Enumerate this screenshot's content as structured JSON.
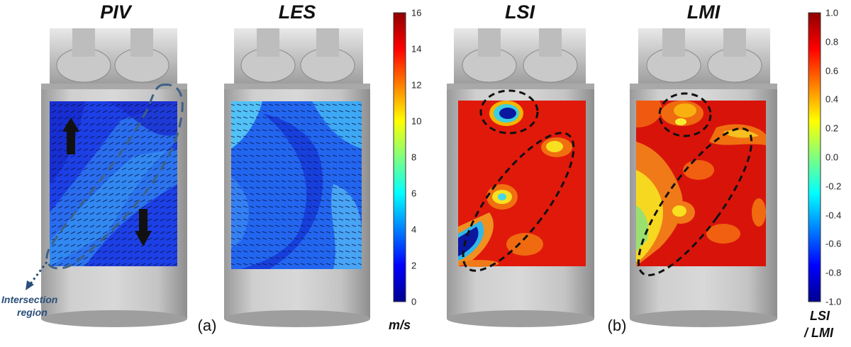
{
  "panel_titles": {
    "piv": "PIV",
    "les": "LES",
    "lsi": "LSI",
    "lmi": "LMI"
  },
  "subfigure_labels": {
    "a": "(a)",
    "b": "(b)"
  },
  "velocity_colorbar": {
    "unit": "m/s",
    "ticks": [
      "0",
      "2",
      "4",
      "6",
      "8",
      "10",
      "12",
      "14",
      "16"
    ],
    "range": [
      0,
      16
    ]
  },
  "index_colorbar": {
    "unit_line1": "LSI",
    "unit_line2": "/ LMI",
    "ticks": [
      "-1.0",
      "-0.8",
      "-0.6",
      "-0.4",
      "-0.2",
      "0.0",
      "0.2",
      "0.4",
      "0.6",
      "0.8",
      "1.0"
    ],
    "range": [
      -1.0,
      1.0
    ]
  },
  "annotation": {
    "line1": "Intersection",
    "line2": "region"
  },
  "colors": {
    "piv_base": "#1840e0",
    "les_base": "#1a55ee",
    "index_base": "#e01a0a",
    "cylinder": "#b8b8b8",
    "dashed_marker": "#111111",
    "annotation": "#2b4f7a"
  },
  "icons": [
    "engine-cylinder-head",
    "intake-valve",
    "flow-direction-arrow",
    "dashed-ellipse-marker"
  ]
}
